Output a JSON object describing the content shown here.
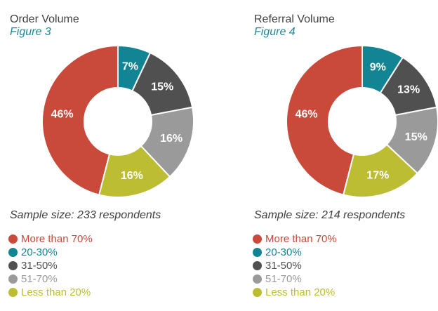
{
  "chart_data": [
    {
      "type": "pie",
      "title": "Order Volume",
      "subtitle": "Figure 3",
      "note": "Sample size: 233 respondents",
      "categories": [
        "More than 70%",
        "20-30%",
        "31-50%",
        "51-70%",
        "Less than 20%"
      ],
      "values": [
        46,
        7,
        15,
        16,
        16
      ],
      "data_labels": [
        "46%",
        "7%",
        "15%",
        "16%",
        "16%"
      ],
      "legend_position": "bottom-left"
    },
    {
      "type": "pie",
      "title": "Referral Volume",
      "subtitle": "Figure 4",
      "note": "Sample size: 214 respondents",
      "categories": [
        "More than 70%",
        "20-30%",
        "31-50%",
        "51-70%",
        "Less than 20%"
      ],
      "values": [
        46,
        9,
        13,
        15,
        17
      ],
      "data_labels": [
        "46%",
        "9%",
        "13%",
        "15%",
        "17%"
      ],
      "legend_position": "bottom-left"
    }
  ],
  "colors": [
    "#c9493a",
    "#128594",
    "#505050",
    "#9a9a9a",
    "#bcbd33"
  ],
  "legend_text_colors": [
    "#c9493a",
    "#128594",
    "#505050",
    "#9a9a9a",
    "#bcbd33"
  ]
}
